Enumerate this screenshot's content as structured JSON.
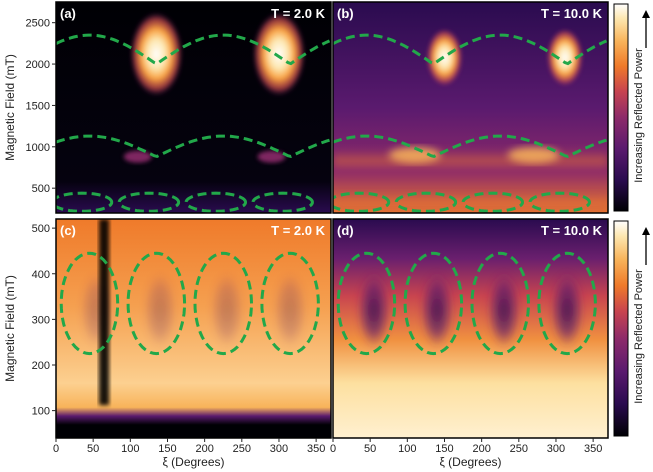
{
  "chart_data": {
    "type": "heatmap",
    "colormap": [
      "#000004",
      "#2a0b4f",
      "#5a1a6e",
      "#8c2a6a",
      "#c8444f",
      "#ef7a2a",
      "#f8b35a",
      "#fde7b0",
      "#ffffff"
    ],
    "overlay_color": "#22a84a",
    "x_ticks": [
      0,
      50,
      100,
      150,
      200,
      250,
      300,
      350
    ],
    "xlim": [
      0,
      370
    ],
    "xlabel": "ξ (Degrees)",
    "colorbar_label": "Increasing Reflected Power",
    "top": {
      "ylabel": "Magnetic Field (mT)",
      "y_ticks": [
        500,
        1000,
        1500,
        2000,
        2500
      ],
      "ylim": [
        200,
        2750
      ],
      "panels": [
        {
          "label": "(a)",
          "temperature": "T = 2.0 K"
        },
        {
          "label": "(b)",
          "temperature": "T = 10.0 K"
        }
      ]
    },
    "bottom": {
      "ylabel": "Magnetic Field (mT)",
      "y_ticks": [
        100,
        200,
        300,
        400,
        500
      ],
      "ylim": [
        40,
        520
      ],
      "panels": [
        {
          "label": "(c)",
          "temperature": "T = 2.0 K"
        },
        {
          "label": "(d)",
          "temperature": "T = 10.0 K"
        }
      ]
    }
  }
}
